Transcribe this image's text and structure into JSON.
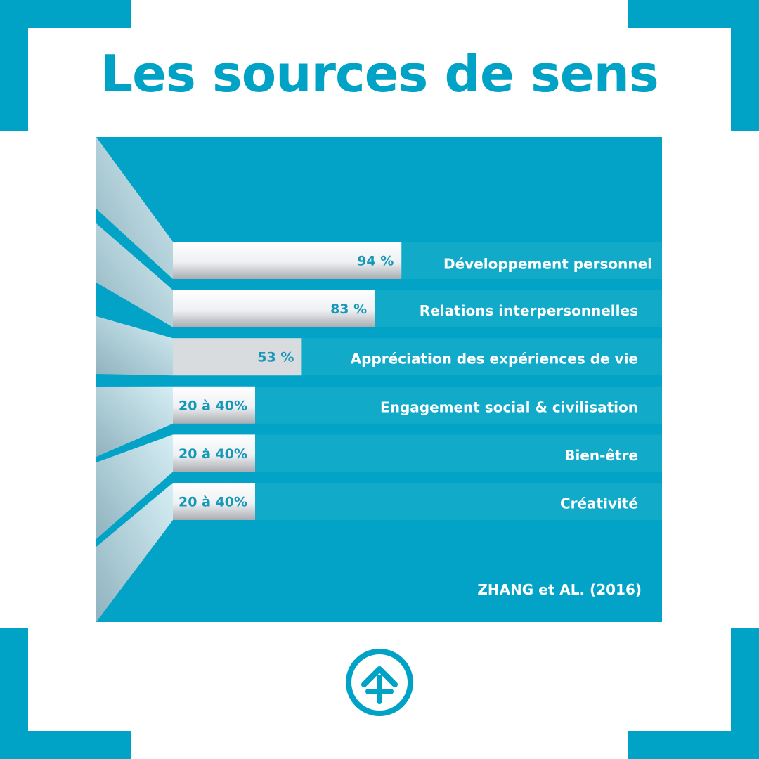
{
  "title": "Les sources de sens",
  "colors": {
    "brand": "#00a3c6",
    "panel": "#02a3c7",
    "band": "#12aac9",
    "label_text": "#ffffff",
    "value_text": "#1497b8"
  },
  "chart_data": {
    "type": "bar",
    "orientation": "horizontal",
    "categories": [
      "Développement personnel",
      "Relations interpersonnelles",
      "Appréciation des expériences de vie",
      "Engagement social & civilisation",
      "Bien-être",
      "Créativité"
    ],
    "values": [
      94,
      83,
      53,
      30,
      30,
      30
    ],
    "value_labels": [
      "94 %",
      "83 %",
      "53 %",
      "20 à 40%",
      "20 à 40%",
      "20 à 40%"
    ],
    "xlim": [
      0,
      100
    ],
    "source": "ZHANG et AL. (2016)"
  },
  "logo": {
    "icon": "arrow-up-plus-circle-icon"
  }
}
